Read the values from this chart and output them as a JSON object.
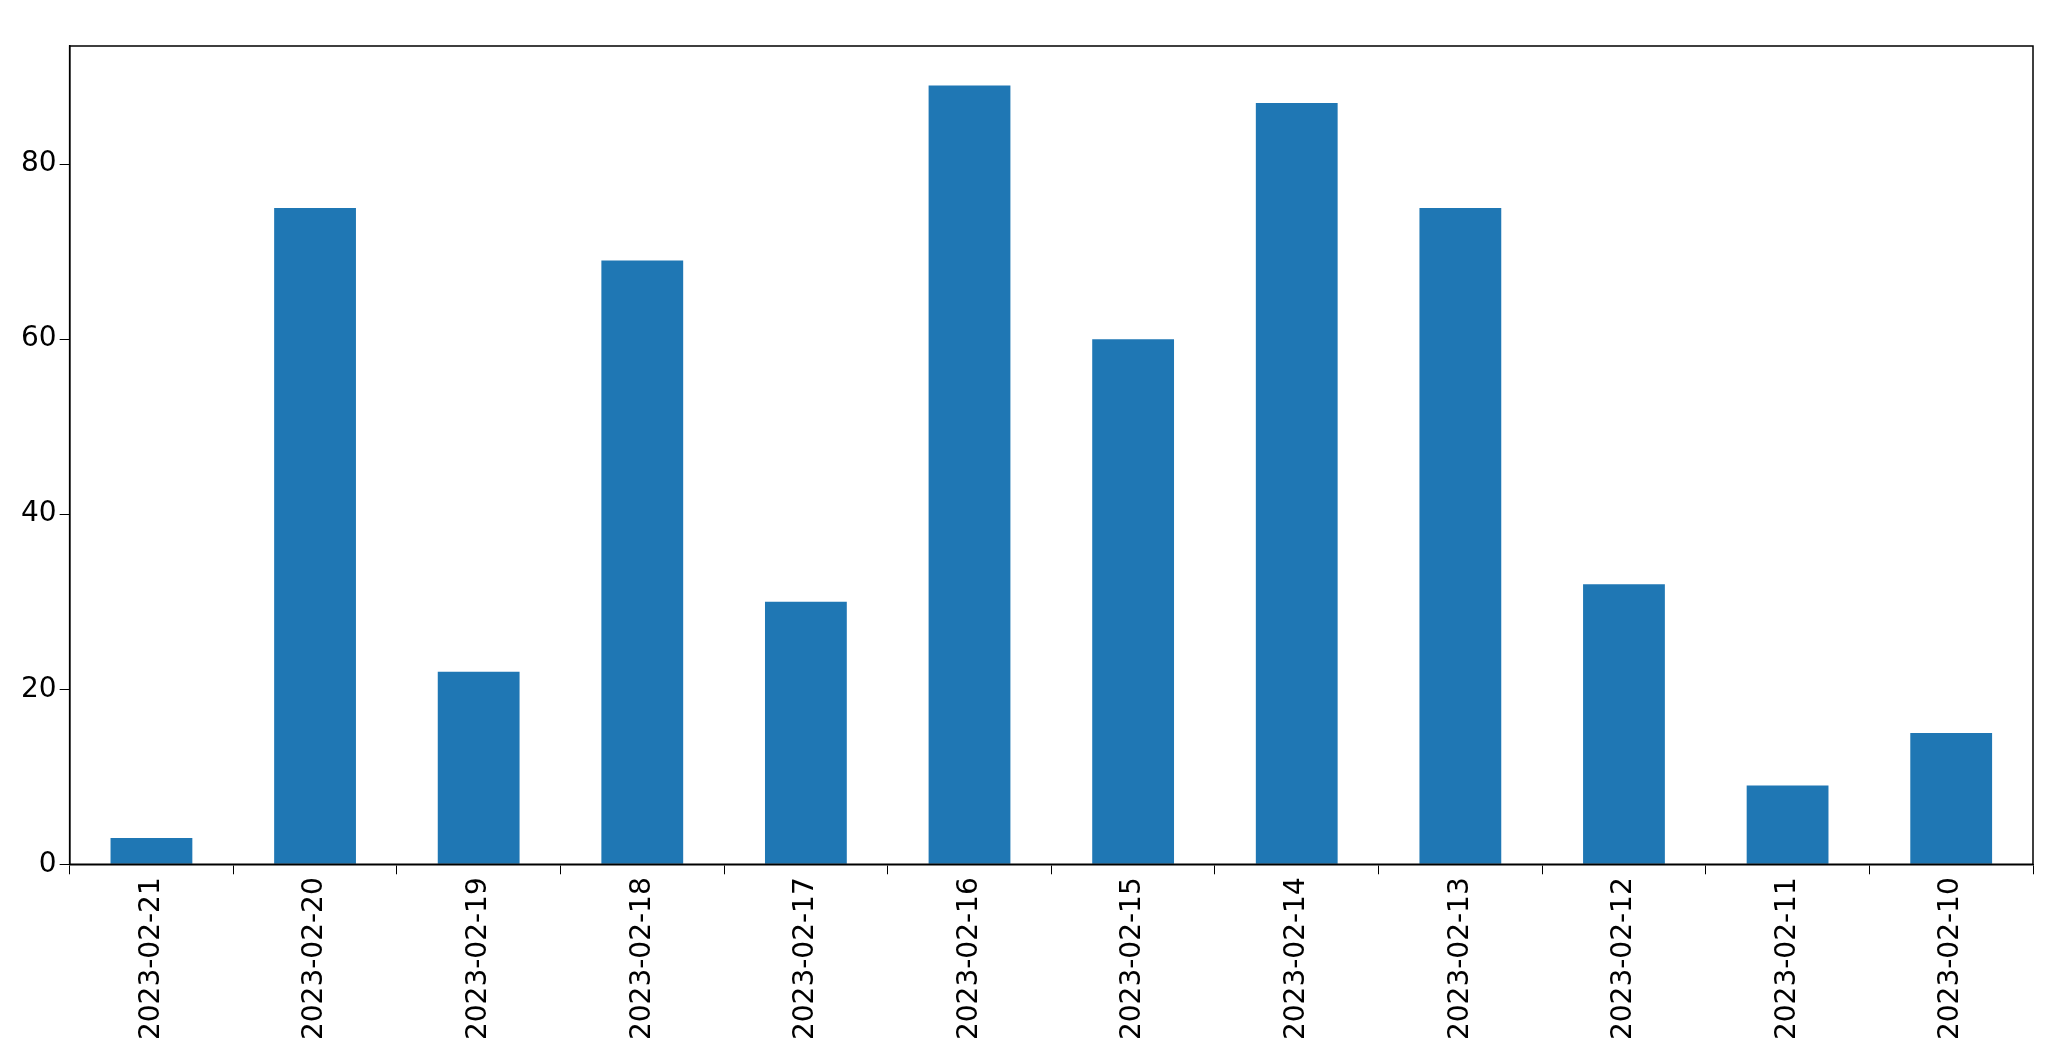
{
  "chart_data": {
    "type": "bar",
    "categories": [
      "2023-02-21",
      "2023-02-20",
      "2023-02-19",
      "2023-02-18",
      "2023-02-17",
      "2023-02-16",
      "2023-02-15",
      "2023-02-14",
      "2023-02-13",
      "2023-02-12",
      "2023-02-11",
      "2023-02-10"
    ],
    "values": [
      3,
      75,
      22,
      69,
      30,
      89,
      60,
      87,
      75,
      32,
      9,
      15
    ],
    "color": "#1f77b4",
    "ylim": [
      0,
      93.5
    ],
    "yticks": [
      0,
      20,
      40,
      60,
      80
    ],
    "grid": false,
    "legend": false
  }
}
